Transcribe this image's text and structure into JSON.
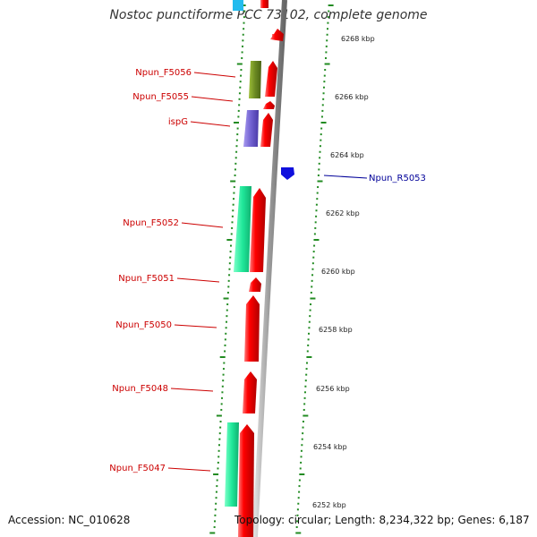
{
  "title": "Nostoc punctiforme PCC 73102, complete genome",
  "footer": {
    "accession": "Accession: NC_010628",
    "summary": "Topology: circular; Length: 8,234,322 bp; Genes: 6,187"
  },
  "colors": {
    "forward": "#ee0000",
    "reverse_green": "#6b8a22",
    "reverse_purple": "#7060d0",
    "reverse_teal": "#20e89a",
    "top_cyan": "#22bbee",
    "rna_blue": "#1010dd",
    "tick_green": "#228b22",
    "label_red": "#cc0000",
    "label_blue": "#000099",
    "backbone": "#999999"
  },
  "scale_ticks": [
    "6268 kbp",
    "6266 kbp",
    "6264 kbp",
    "6262 kbp",
    "6260 kbp",
    "6258 kbp",
    "6256 kbp",
    "6254 kbp",
    "6252 kbp"
  ],
  "gene_labels": [
    {
      "name": "Npun_F5056",
      "color": "label_red"
    },
    {
      "name": "Npun_F5055",
      "color": "label_red"
    },
    {
      "name": "ispG",
      "color": "label_red"
    },
    {
      "name": "Npun_R5053",
      "color": "label_blue"
    },
    {
      "name": "Npun_F5052",
      "color": "label_red"
    },
    {
      "name": "Npun_F5051",
      "color": "label_red"
    },
    {
      "name": "Npun_F5050",
      "color": "label_red"
    },
    {
      "name": "Npun_F5048",
      "color": "label_red"
    },
    {
      "name": "Npun_F5047",
      "color": "label_red"
    }
  ]
}
